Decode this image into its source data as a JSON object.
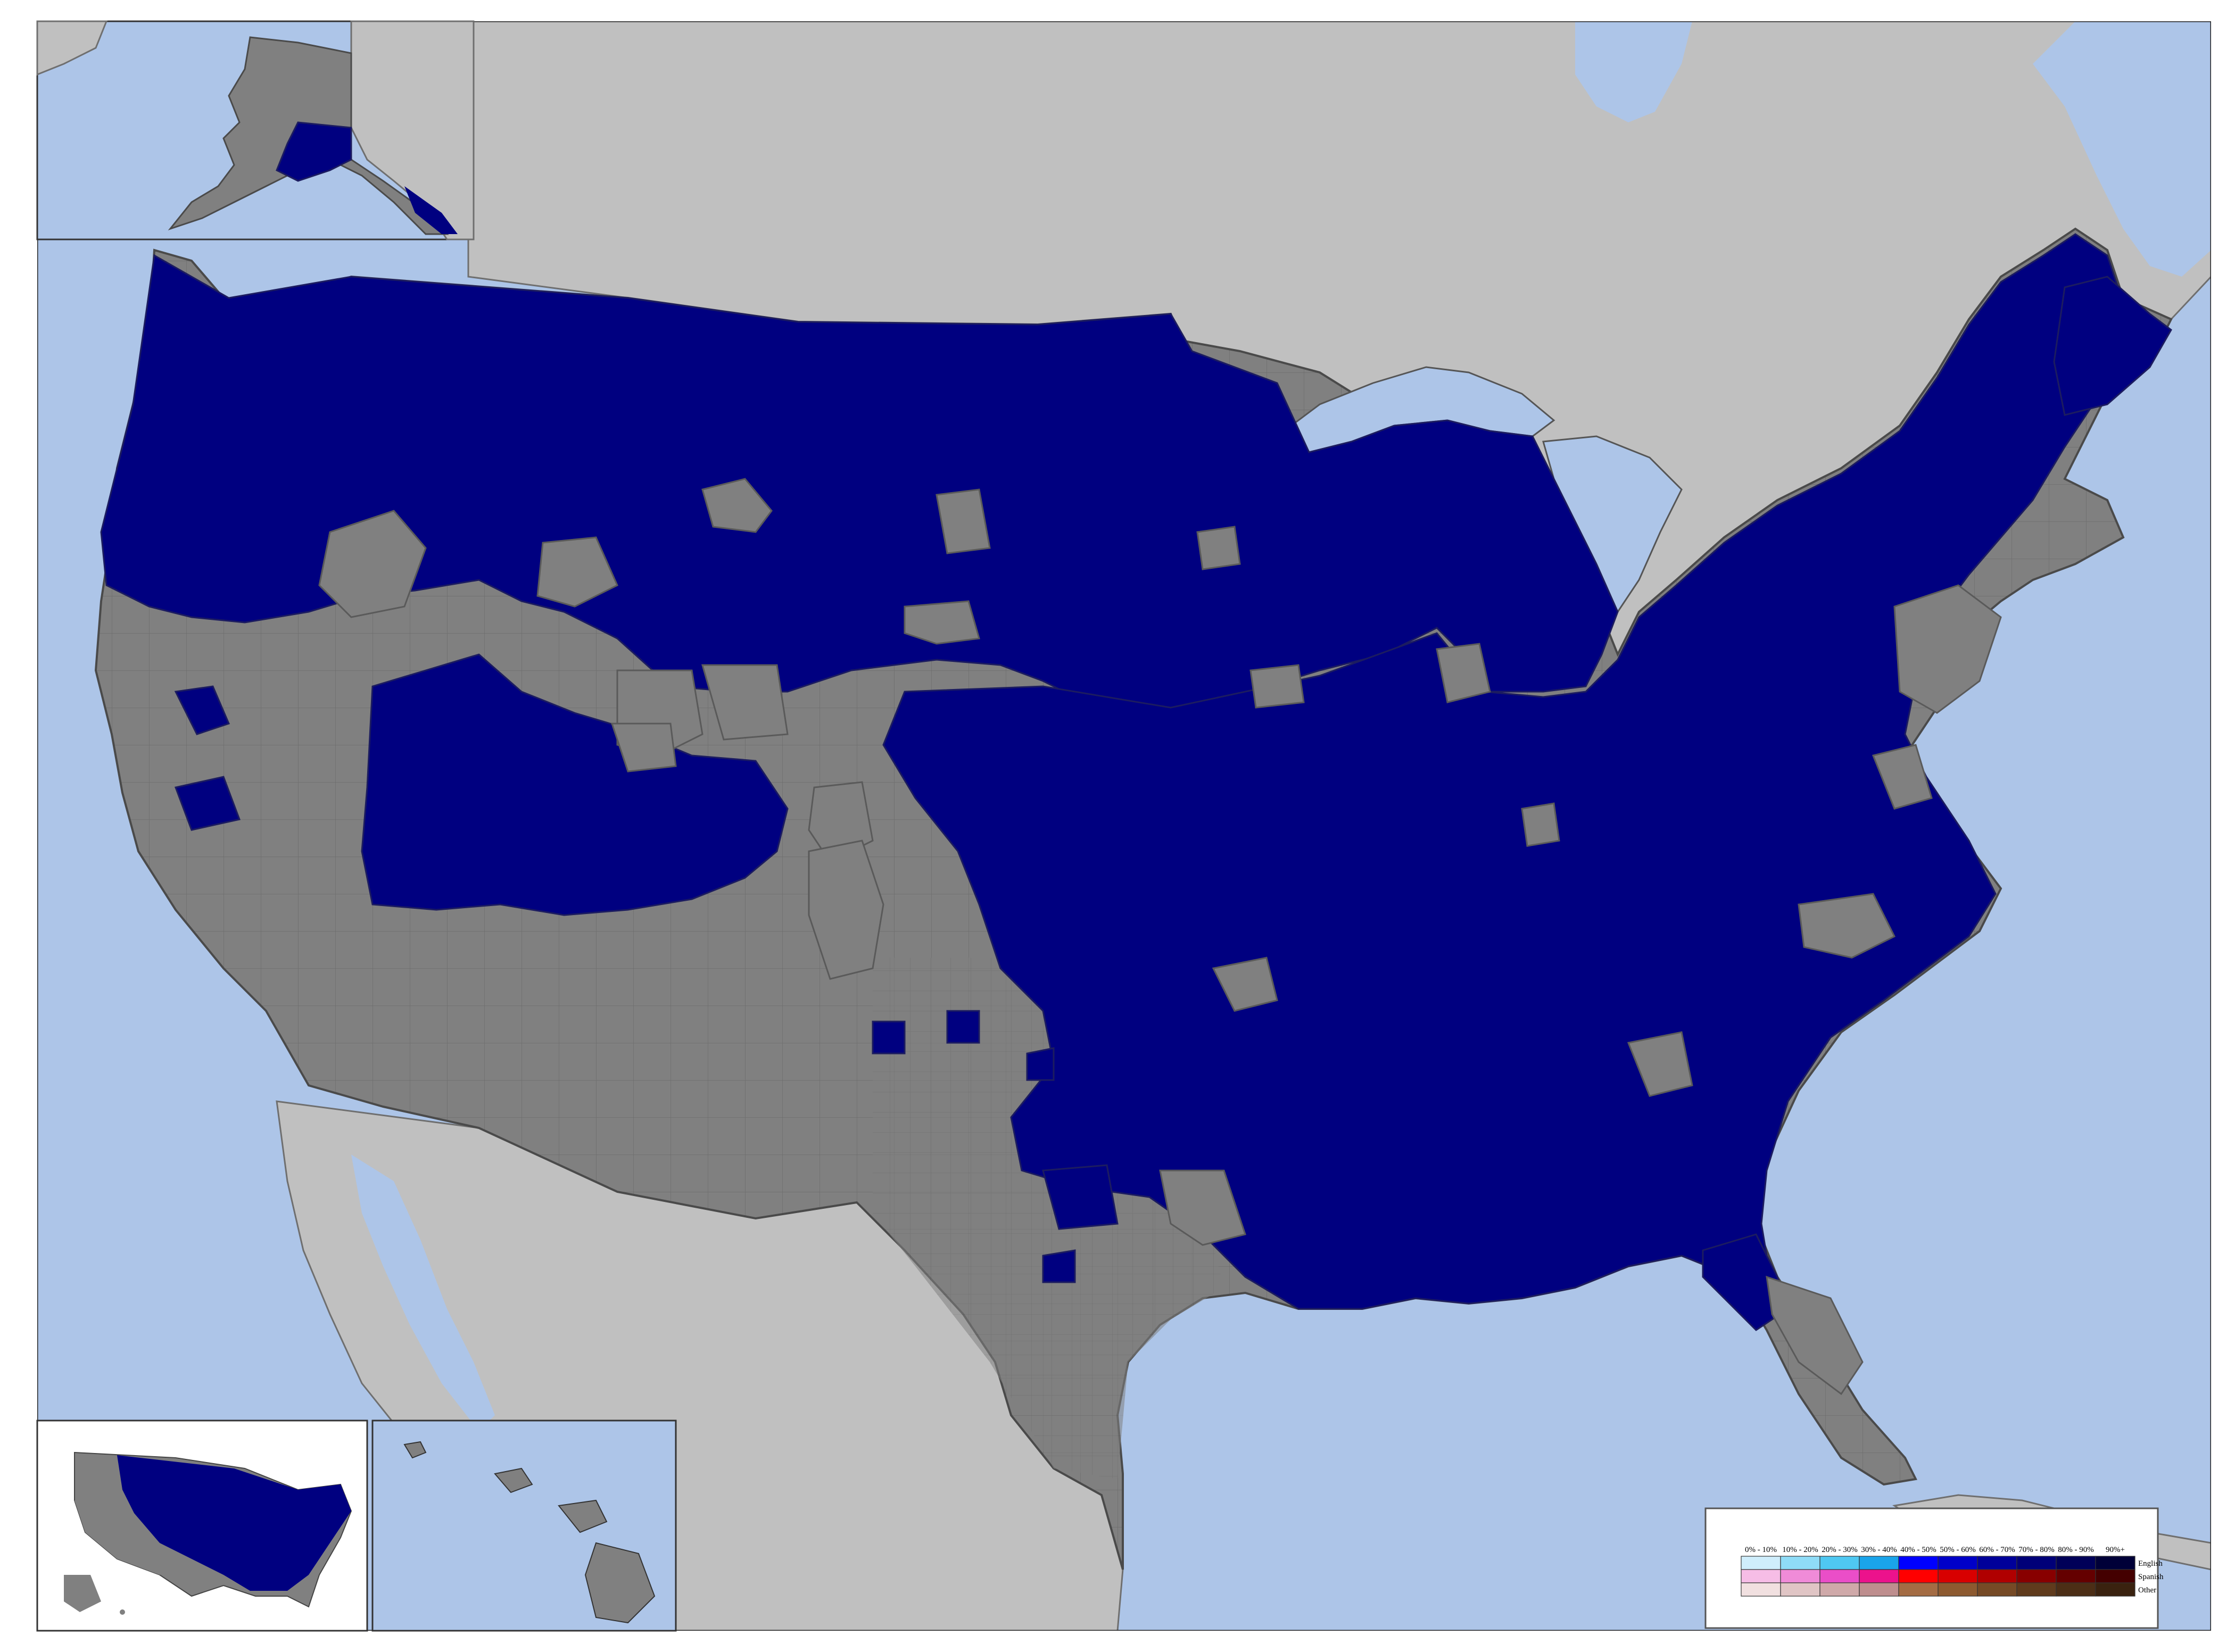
{
  "map": {
    "type": "choropleth",
    "subject": "counties by majority language spoken at home",
    "colors": {
      "water": "#adc5e8",
      "foreign_land": "#c0c0c0",
      "county_grey": "#808080",
      "county_navy": "#000080",
      "inset_background": "#ffffff"
    },
    "insets": [
      "alaska-inset",
      "hawaii-inset",
      "overview-inset"
    ]
  },
  "legend": {
    "ranges": [
      "0% - 10%",
      "10% - 20%",
      "20% - 30%",
      "30% - 40%",
      "40% - 50%",
      "50% - 60%",
      "60% - 70%",
      "70% - 80%",
      "80% - 90%",
      "90%+"
    ],
    "rows": [
      {
        "label": "English",
        "colors": [
          "#cfeefc",
          "#8fdcf7",
          "#4fc8f2",
          "#1aa4ea",
          "#0000ff",
          "#0000c8",
          "#00009a",
          "#000078",
          "#000058",
          "#000038"
        ]
      },
      {
        "label": "Spanish",
        "colors": [
          "#f6bde6",
          "#f08bd8",
          "#ea4ec8",
          "#ec128c",
          "#ff0000",
          "#d80000",
          "#b00000",
          "#880000",
          "#640000",
          "#440000"
        ]
      },
      {
        "label": "Other",
        "colors": [
          "#f1e0e0",
          "#e0c5c5",
          "#cfa9a9",
          "#be8e8e",
          "#a46c44",
          "#8d5a30",
          "#764a26",
          "#603b1d",
          "#4c2e16",
          "#3a220f"
        ]
      }
    ]
  }
}
